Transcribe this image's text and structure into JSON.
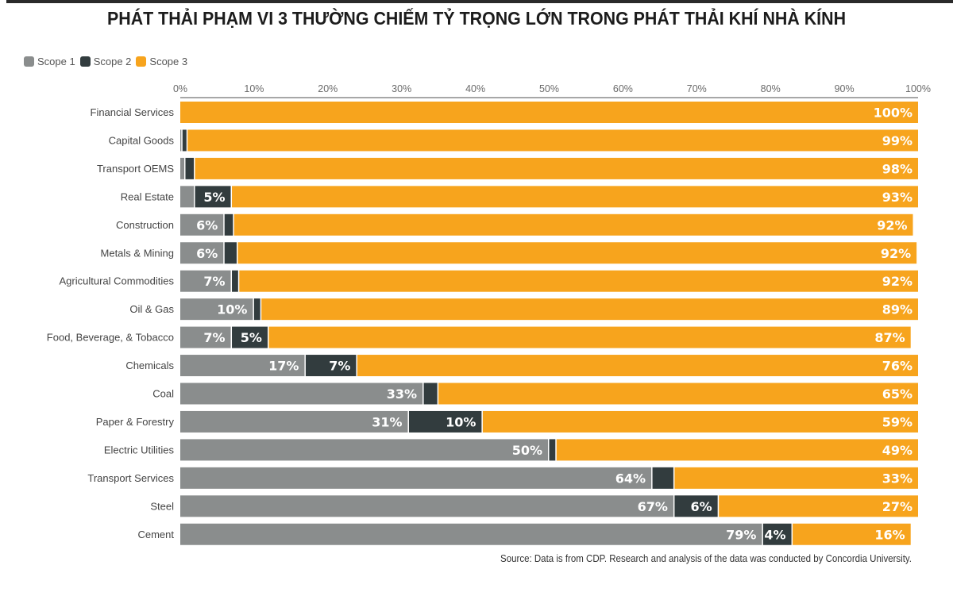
{
  "chart_data": {
    "type": "bar",
    "orientation": "horizontal",
    "stacked": true,
    "title": "PHÁT THẢI PHẠM VI 3 THƯỜNG CHIẾM TỶ TRỌNG LỚN TRONG PHÁT THẢI KHÍ NHÀ KÍNH",
    "xlabel": "",
    "ylabel": "",
    "xlim": [
      0,
      100
    ],
    "x_ticks": [
      "0%",
      "10%",
      "20%",
      "30%",
      "40%",
      "50%",
      "60%",
      "70%",
      "80%",
      "90%",
      "100%"
    ],
    "legend_position": "top-left",
    "legend": [
      "Scope 1",
      "Scope 2",
      "Scope 3"
    ],
    "colors": {
      "scope1": "#8a8d8d",
      "scope2": "#323c3e",
      "scope3": "#f7a41d",
      "axis": "#8a8a8a",
      "label": "#ffffff"
    },
    "categories": [
      "Financial Services",
      "Capital Goods",
      "Transport OEMS",
      "Real Estate",
      "Construction",
      "Metals & Mining",
      "Agricultural Commodities",
      "Oil & Gas",
      "Food, Beverage, & Tobacco",
      "Chemicals",
      "Coal",
      "Paper & Forestry",
      "Electric Utilities",
      "Transport Services",
      "Steel",
      "Cement"
    ],
    "series": [
      {
        "name": "Scope 1",
        "values": [
          0,
          0.3,
          0.7,
          2,
          6,
          6,
          7,
          10,
          7,
          17,
          33,
          31,
          50,
          64,
          67,
          79
        ],
        "labels": [
          "",
          "",
          "",
          "",
          "6%",
          "6%",
          "7%",
          "10%",
          "7%",
          "17%",
          "33%",
          "31%",
          "50%",
          "64%",
          "67%",
          "79%"
        ]
      },
      {
        "name": "Scope 2",
        "values": [
          0,
          0.7,
          1.3,
          5,
          1.3,
          1.8,
          1,
          1,
          5,
          7,
          2,
          10,
          1,
          3,
          6,
          4
        ],
        "labels": [
          "",
          "",
          "",
          "5%",
          "",
          "",
          "",
          "",
          "5%",
          "7%",
          "",
          "10%",
          "",
          "",
          "6%",
          "4%"
        ]
      },
      {
        "name": "Scope 3",
        "values": [
          100,
          99,
          98,
          93,
          92,
          92,
          92,
          89,
          87,
          76,
          65,
          59,
          49,
          33,
          27,
          16
        ],
        "labels": [
          "100%",
          "99%",
          "98%",
          "93%",
          "92%",
          "92%",
          "92%",
          "89%",
          "87%",
          "76%",
          "65%",
          "59%",
          "49%",
          "33%",
          "27%",
          "16%"
        ]
      }
    ]
  },
  "source": "Source: Data is from CDP. Research and analysis of the data was conducted by Concordia University."
}
